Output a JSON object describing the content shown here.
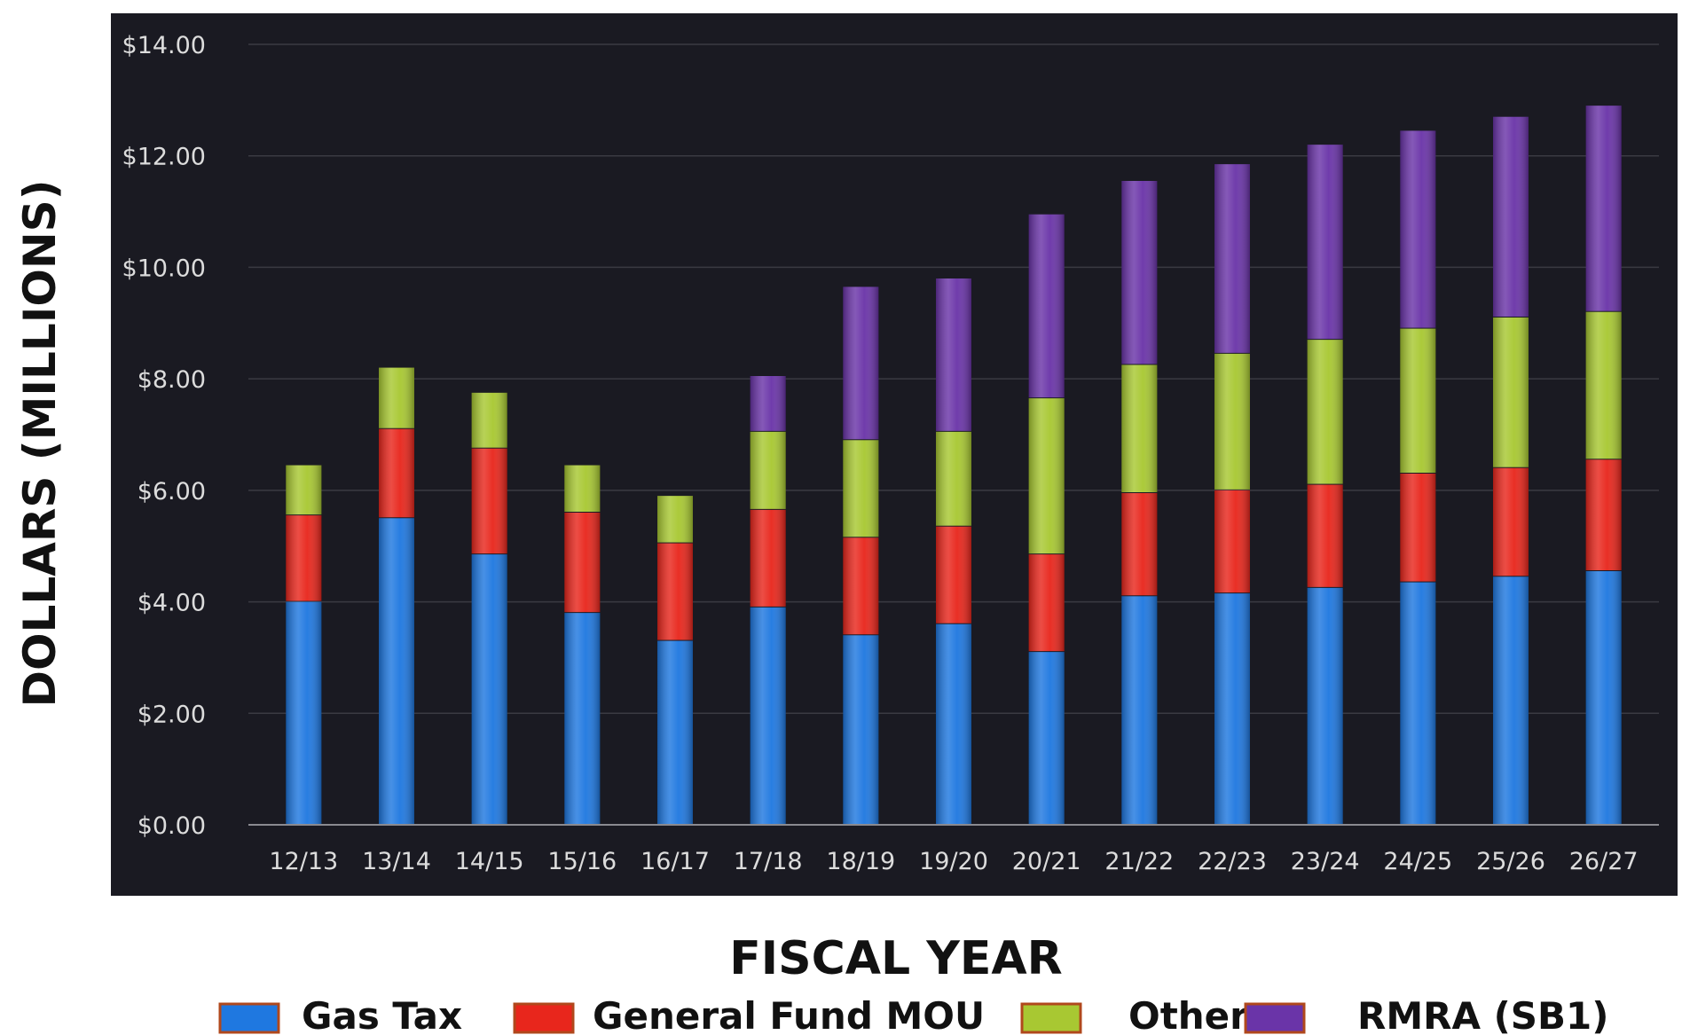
{
  "chart_data": {
    "type": "bar",
    "stacked": true,
    "title": "",
    "xlabel": "FISCAL YEAR",
    "ylabel": "DOLLARS (MILLIONS)",
    "ylim": [
      0,
      14
    ],
    "yticks": [
      "$0.00",
      "$2.00",
      "$4.00",
      "$6.00",
      "$8.00",
      "$10.00",
      "$12.00",
      "$14.00"
    ],
    "categories": [
      "12/13",
      "13/14",
      "14/15",
      "15/16",
      "16/17",
      "17/18",
      "18/19",
      "19/20",
      "20/21",
      "21/22",
      "22/23",
      "23/24",
      "24/25",
      "25/26",
      "26/27"
    ],
    "series": [
      {
        "name": "Gas Tax",
        "color": "#1f78e0",
        "values": [
          4.0,
          5.5,
          4.85,
          3.8,
          3.3,
          3.9,
          3.4,
          3.6,
          3.1,
          4.1,
          4.15,
          4.25,
          4.35,
          4.45,
          4.55
        ]
      },
      {
        "name": "General Fund MOU",
        "color": "#e8261c",
        "values": [
          1.55,
          1.6,
          1.9,
          1.8,
          1.75,
          1.75,
          1.75,
          1.75,
          1.75,
          1.85,
          1.85,
          1.85,
          1.95,
          1.95,
          2.0
        ]
      },
      {
        "name": "Other",
        "color": "#a8c832",
        "values": [
          0.9,
          1.1,
          1.0,
          0.85,
          0.85,
          1.4,
          1.75,
          1.7,
          2.8,
          2.3,
          2.45,
          2.6,
          2.6,
          2.7,
          2.65
        ]
      },
      {
        "name": "RMRA (SB1)",
        "color": "#6a34a8",
        "values": [
          0,
          0,
          0,
          0,
          0,
          1.0,
          2.75,
          2.75,
          3.3,
          3.3,
          3.4,
          3.5,
          3.55,
          3.6,
          3.7
        ]
      }
    ],
    "grid": true,
    "legend": "bottom"
  },
  "colors": {
    "plot_background": "#1a1a22",
    "gridline": "#3a3a42",
    "tick_text": "#dcdcdc",
    "legend_border": "#b0481c"
  }
}
